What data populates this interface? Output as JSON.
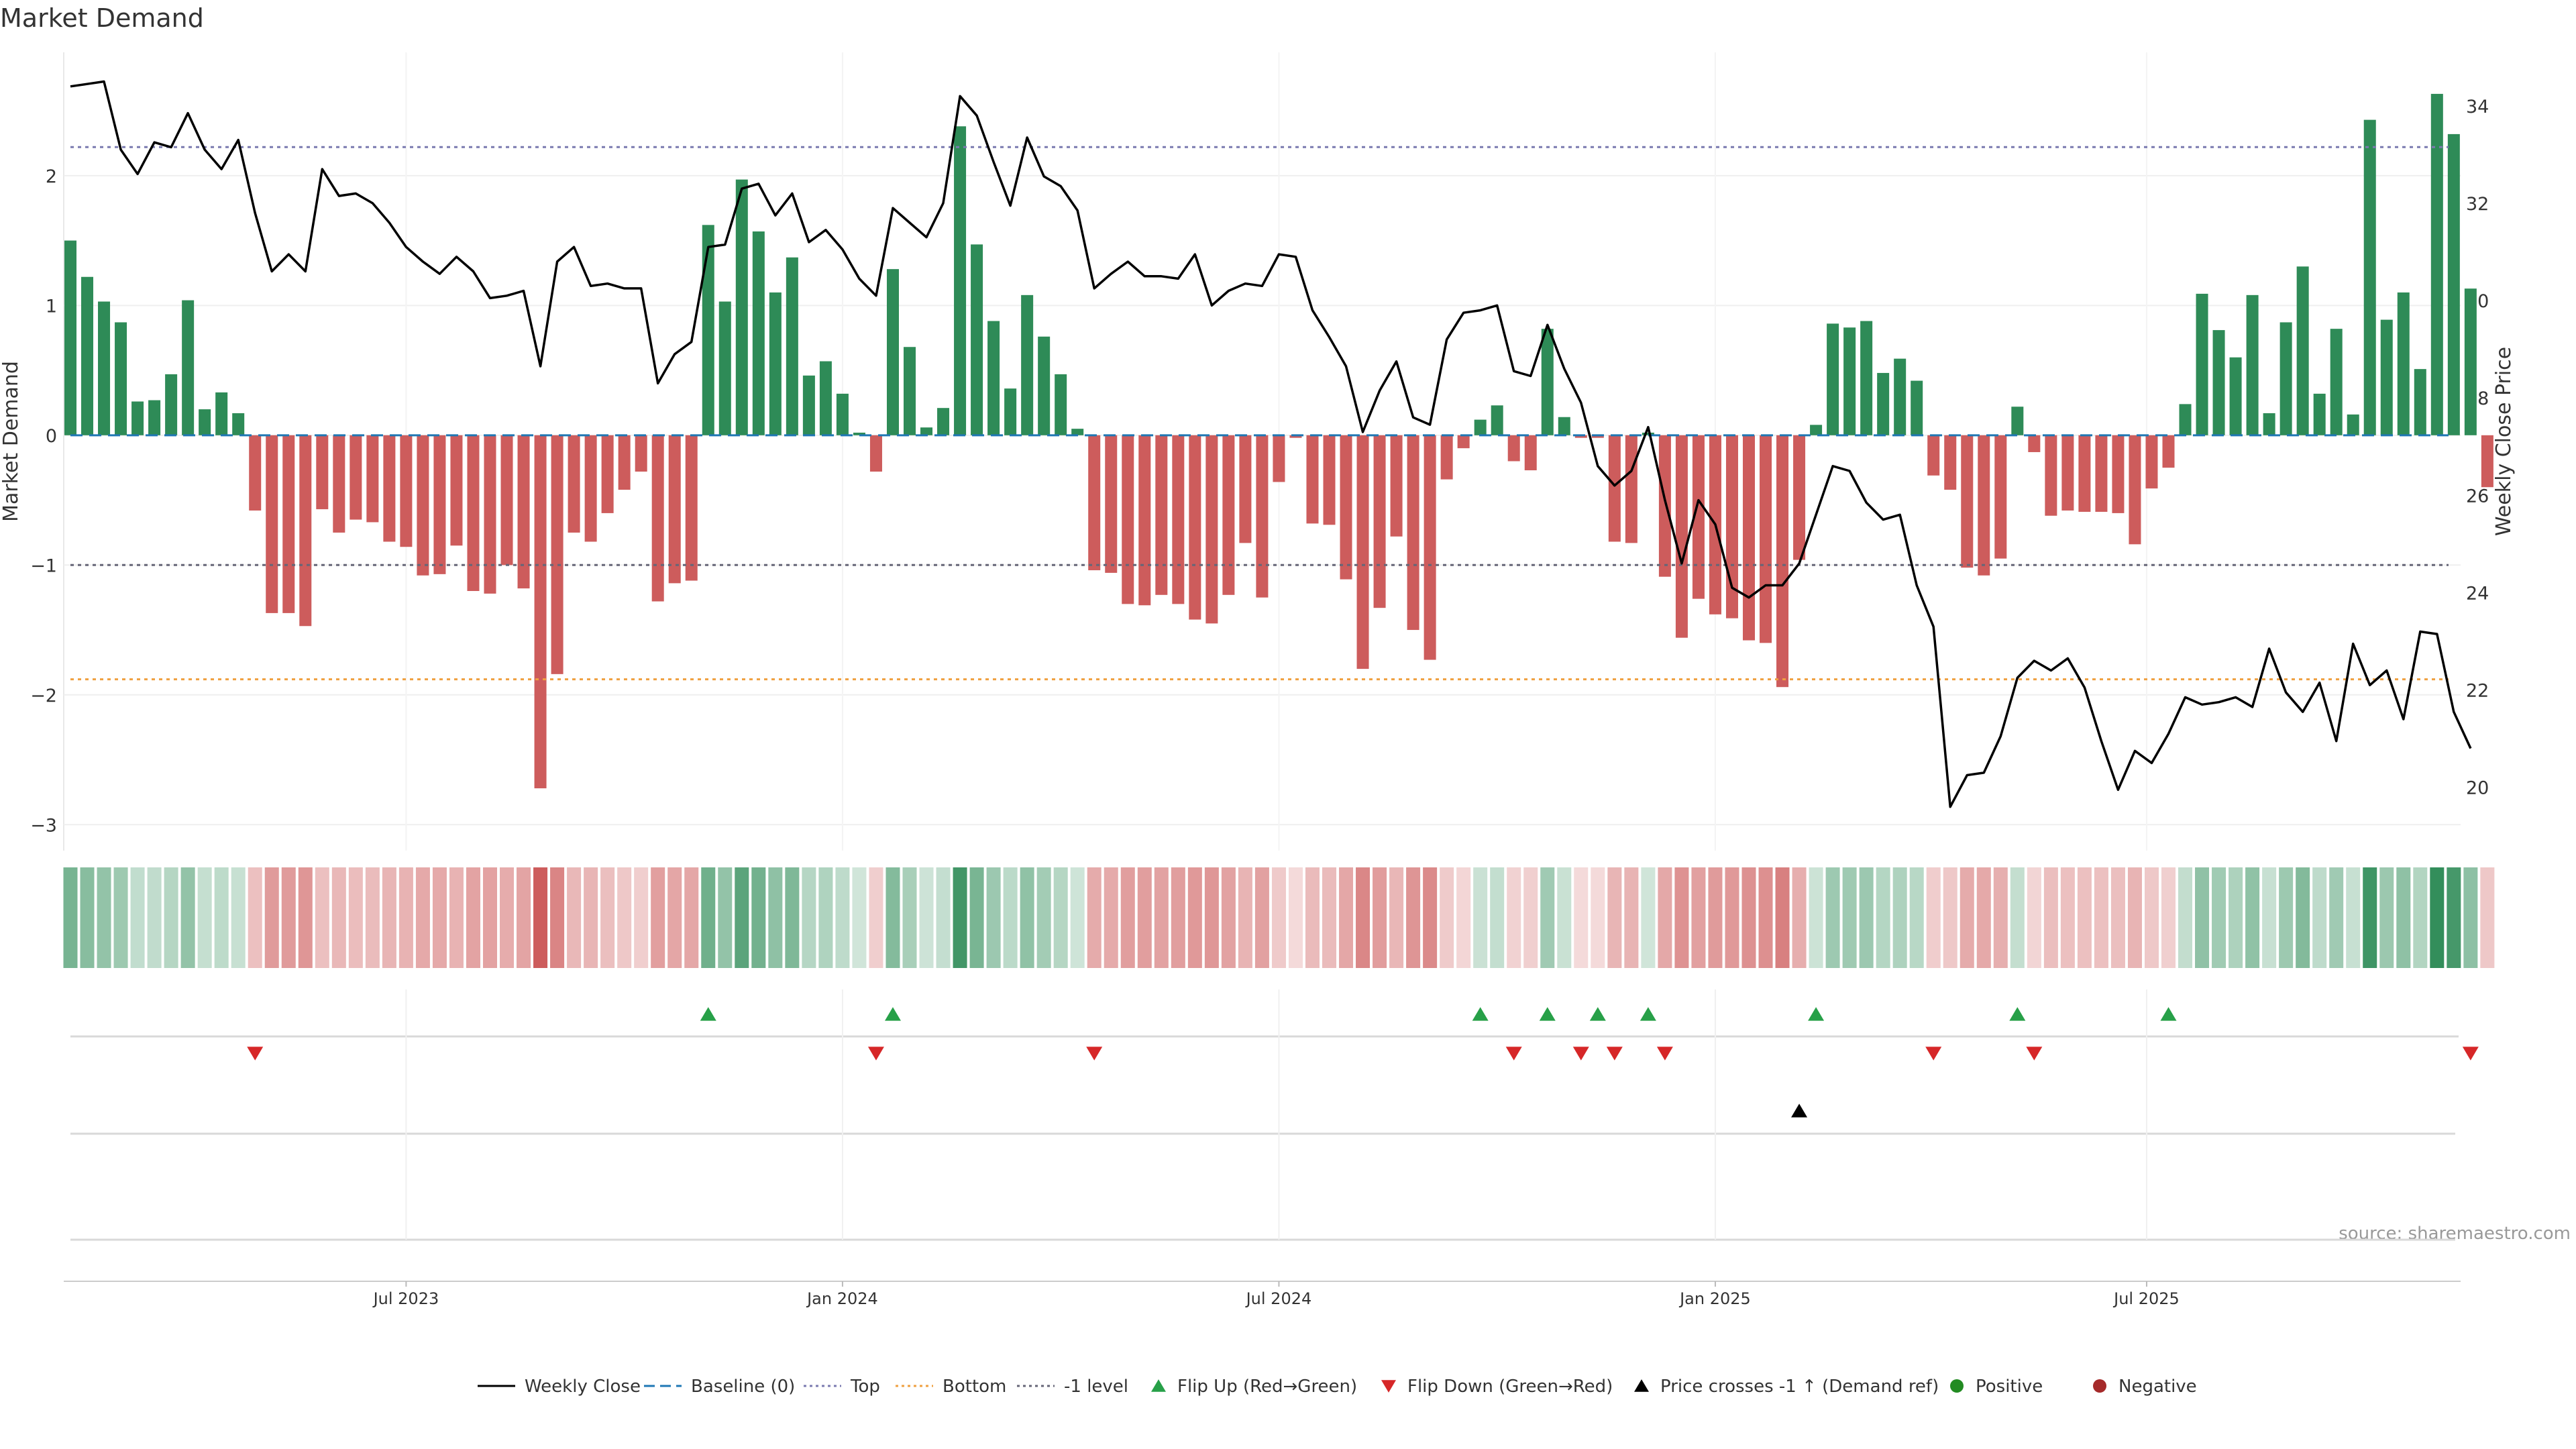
{
  "chart_data": {
    "type": "bar",
    "title": "Market Demand",
    "ylabel": "Market Demand",
    "y2label": "Weekly Close Price",
    "ylim": [
      -3.2,
      2.95
    ],
    "y2lim": [
      18.7,
      35.1
    ],
    "yticks": [
      -3,
      -2,
      -1,
      0,
      1,
      2
    ],
    "yticklabels": [
      "−3",
      "−2",
      "−1",
      "0",
      "1",
      "2"
    ],
    "y2ticks": [
      20,
      22,
      24,
      26,
      28,
      30,
      32,
      34
    ],
    "xticklabels": [
      "Jul 2023",
      "Jan 2024",
      "Jul 2024",
      "Jan 2025",
      "Jul 2025"
    ],
    "xtick_index": [
      20,
      46,
      72,
      98,
      123.7
    ],
    "grid": true,
    "legend_position": "bottom",
    "reference_lines": {
      "top": 2.22,
      "bottom": -1.88,
      "minus_one": -1
    },
    "demand": [
      1.5,
      1.22,
      1.03,
      0.87,
      0.26,
      0.27,
      0.47,
      1.04,
      0.2,
      0.33,
      0.17,
      -0.58,
      -1.37,
      -1.37,
      -1.47,
      -0.57,
      -0.75,
      -0.65,
      -0.67,
      -0.82,
      -0.86,
      -1.08,
      -1.07,
      -0.85,
      -1.2,
      -1.22,
      -1.0,
      -1.18,
      -2.72,
      -1.84,
      -0.75,
      -0.82,
      -0.6,
      -0.42,
      -0.28,
      -1.28,
      -1.14,
      -1.12,
      1.62,
      1.03,
      1.97,
      1.57,
      1.1,
      1.37,
      0.46,
      0.57,
      0.32,
      0.02,
      -0.28,
      1.28,
      0.68,
      0.06,
      0.21,
      2.38,
      1.47,
      0.88,
      0.36,
      1.08,
      0.76,
      0.47,
      0.05,
      -1.04,
      -1.06,
      -1.3,
      -1.31,
      -1.23,
      -1.3,
      -1.42,
      -1.45,
      -1.23,
      -0.83,
      -1.25,
      -0.36,
      -0.02,
      -0.68,
      -0.69,
      -1.11,
      -1.8,
      -1.33,
      -0.78,
      -1.5,
      -1.73,
      -0.34,
      -0.1,
      0.12,
      0.23,
      -0.2,
      -0.27,
      0.82,
      0.14,
      -0.02,
      -0.02,
      -0.82,
      -0.83,
      0.02,
      -1.09,
      -1.56,
      -1.26,
      -1.38,
      -1.41,
      -1.58,
      -1.6,
      -1.94,
      -0.96,
      0.08,
      0.86,
      0.83,
      0.88,
      0.48,
      0.59,
      0.42,
      -0.31,
      -0.42,
      -1.02,
      -1.08,
      -0.95,
      0.22,
      -0.13,
      -0.62,
      -0.58,
      -0.59,
      -0.59,
      -0.6,
      -0.84,
      -0.41,
      -0.25,
      0.24,
      1.09,
      0.81,
      0.6,
      1.08,
      0.17,
      0.87,
      1.3,
      0.32,
      0.82,
      0.16,
      2.43,
      0.89,
      1.1,
      0.51,
      2.63,
      2.32,
      1.13,
      -0.4
    ],
    "close": [
      34.4,
      34.45,
      34.5,
      33.1,
      32.6,
      33.25,
      33.15,
      33.85,
      33.1,
      32.7,
      33.3,
      31.8,
      30.6,
      30.95,
      30.6,
      32.7,
      32.15,
      32.2,
      32.0,
      31.6,
      31.1,
      30.8,
      30.55,
      30.9,
      30.6,
      30.05,
      30.1,
      30.2,
      28.65,
      30.8,
      31.1,
      30.3,
      30.35,
      30.25,
      30.25,
      28.3,
      28.9,
      29.15,
      31.1,
      31.15,
      32.3,
      32.4,
      31.75,
      32.2,
      31.2,
      31.45,
      31.05,
      30.45,
      30.1,
      31.9,
      31.6,
      31.3,
      32.0,
      34.2,
      33.8,
      32.85,
      31.95,
      33.35,
      32.55,
      32.35,
      31.85,
      30.25,
      30.55,
      30.8,
      30.5,
      30.5,
      30.45,
      30.95,
      29.9,
      30.2,
      30.35,
      30.3,
      30.95,
      30.9,
      29.8,
      29.25,
      28.65,
      27.3,
      28.15,
      28.75,
      27.6,
      27.45,
      29.2,
      29.75,
      29.8,
      29.9,
      28.55,
      28.45,
      29.5,
      28.6,
      27.9,
      26.6,
      26.2,
      26.5,
      27.4,
      25.9,
      24.6,
      25.9,
      25.4,
      24.1,
      23.9,
      24.15,
      24.15,
      24.6,
      25.6,
      26.6,
      26.5,
      25.85,
      25.5,
      25.6,
      24.15,
      23.3,
      19.6,
      20.25,
      20.3,
      21.05,
      22.25,
      22.6,
      22.4,
      22.65,
      22.05,
      20.95,
      19.95,
      20.75,
      20.5,
      21.1,
      21.85,
      21.7,
      21.75,
      21.85,
      21.65,
      22.85,
      21.95,
      21.55,
      22.15,
      20.95,
      22.95,
      22.1,
      22.4,
      21.4,
      23.2,
      23.15,
      21.55,
      20.8
    ],
    "flip_up_index": [
      38,
      49,
      84,
      88,
      91,
      94,
      104,
      116,
      125
    ],
    "flip_down_index": [
      11,
      48,
      61,
      86,
      90,
      92,
      95,
      111,
      117,
      143
    ],
    "price_cross_index": [
      103
    ],
    "source": "source: sharemaestro.com",
    "legend": [
      "Weekly Close",
      "Baseline (0)",
      "Top",
      "Bottom",
      "-1 level",
      "Flip Up (Red→Green)",
      "Flip Down (Green→Red)",
      "Price crosses -1 ↑ (Demand ref)",
      "Positive",
      "Negative"
    ],
    "colors": {
      "positive": "#2e8b57",
      "negative": "#cd5c5c",
      "close": "#000000",
      "baseline": "#1f77b4",
      "top": "#7b7bb0",
      "bottom": "#f0a040",
      "minus_one": "#666677",
      "flip_up": "#27a048",
      "flip_down": "#d62728",
      "price_cross": "#000000",
      "positive_dot": "#228b22",
      "negative_dot": "#a52a2a"
    }
  }
}
